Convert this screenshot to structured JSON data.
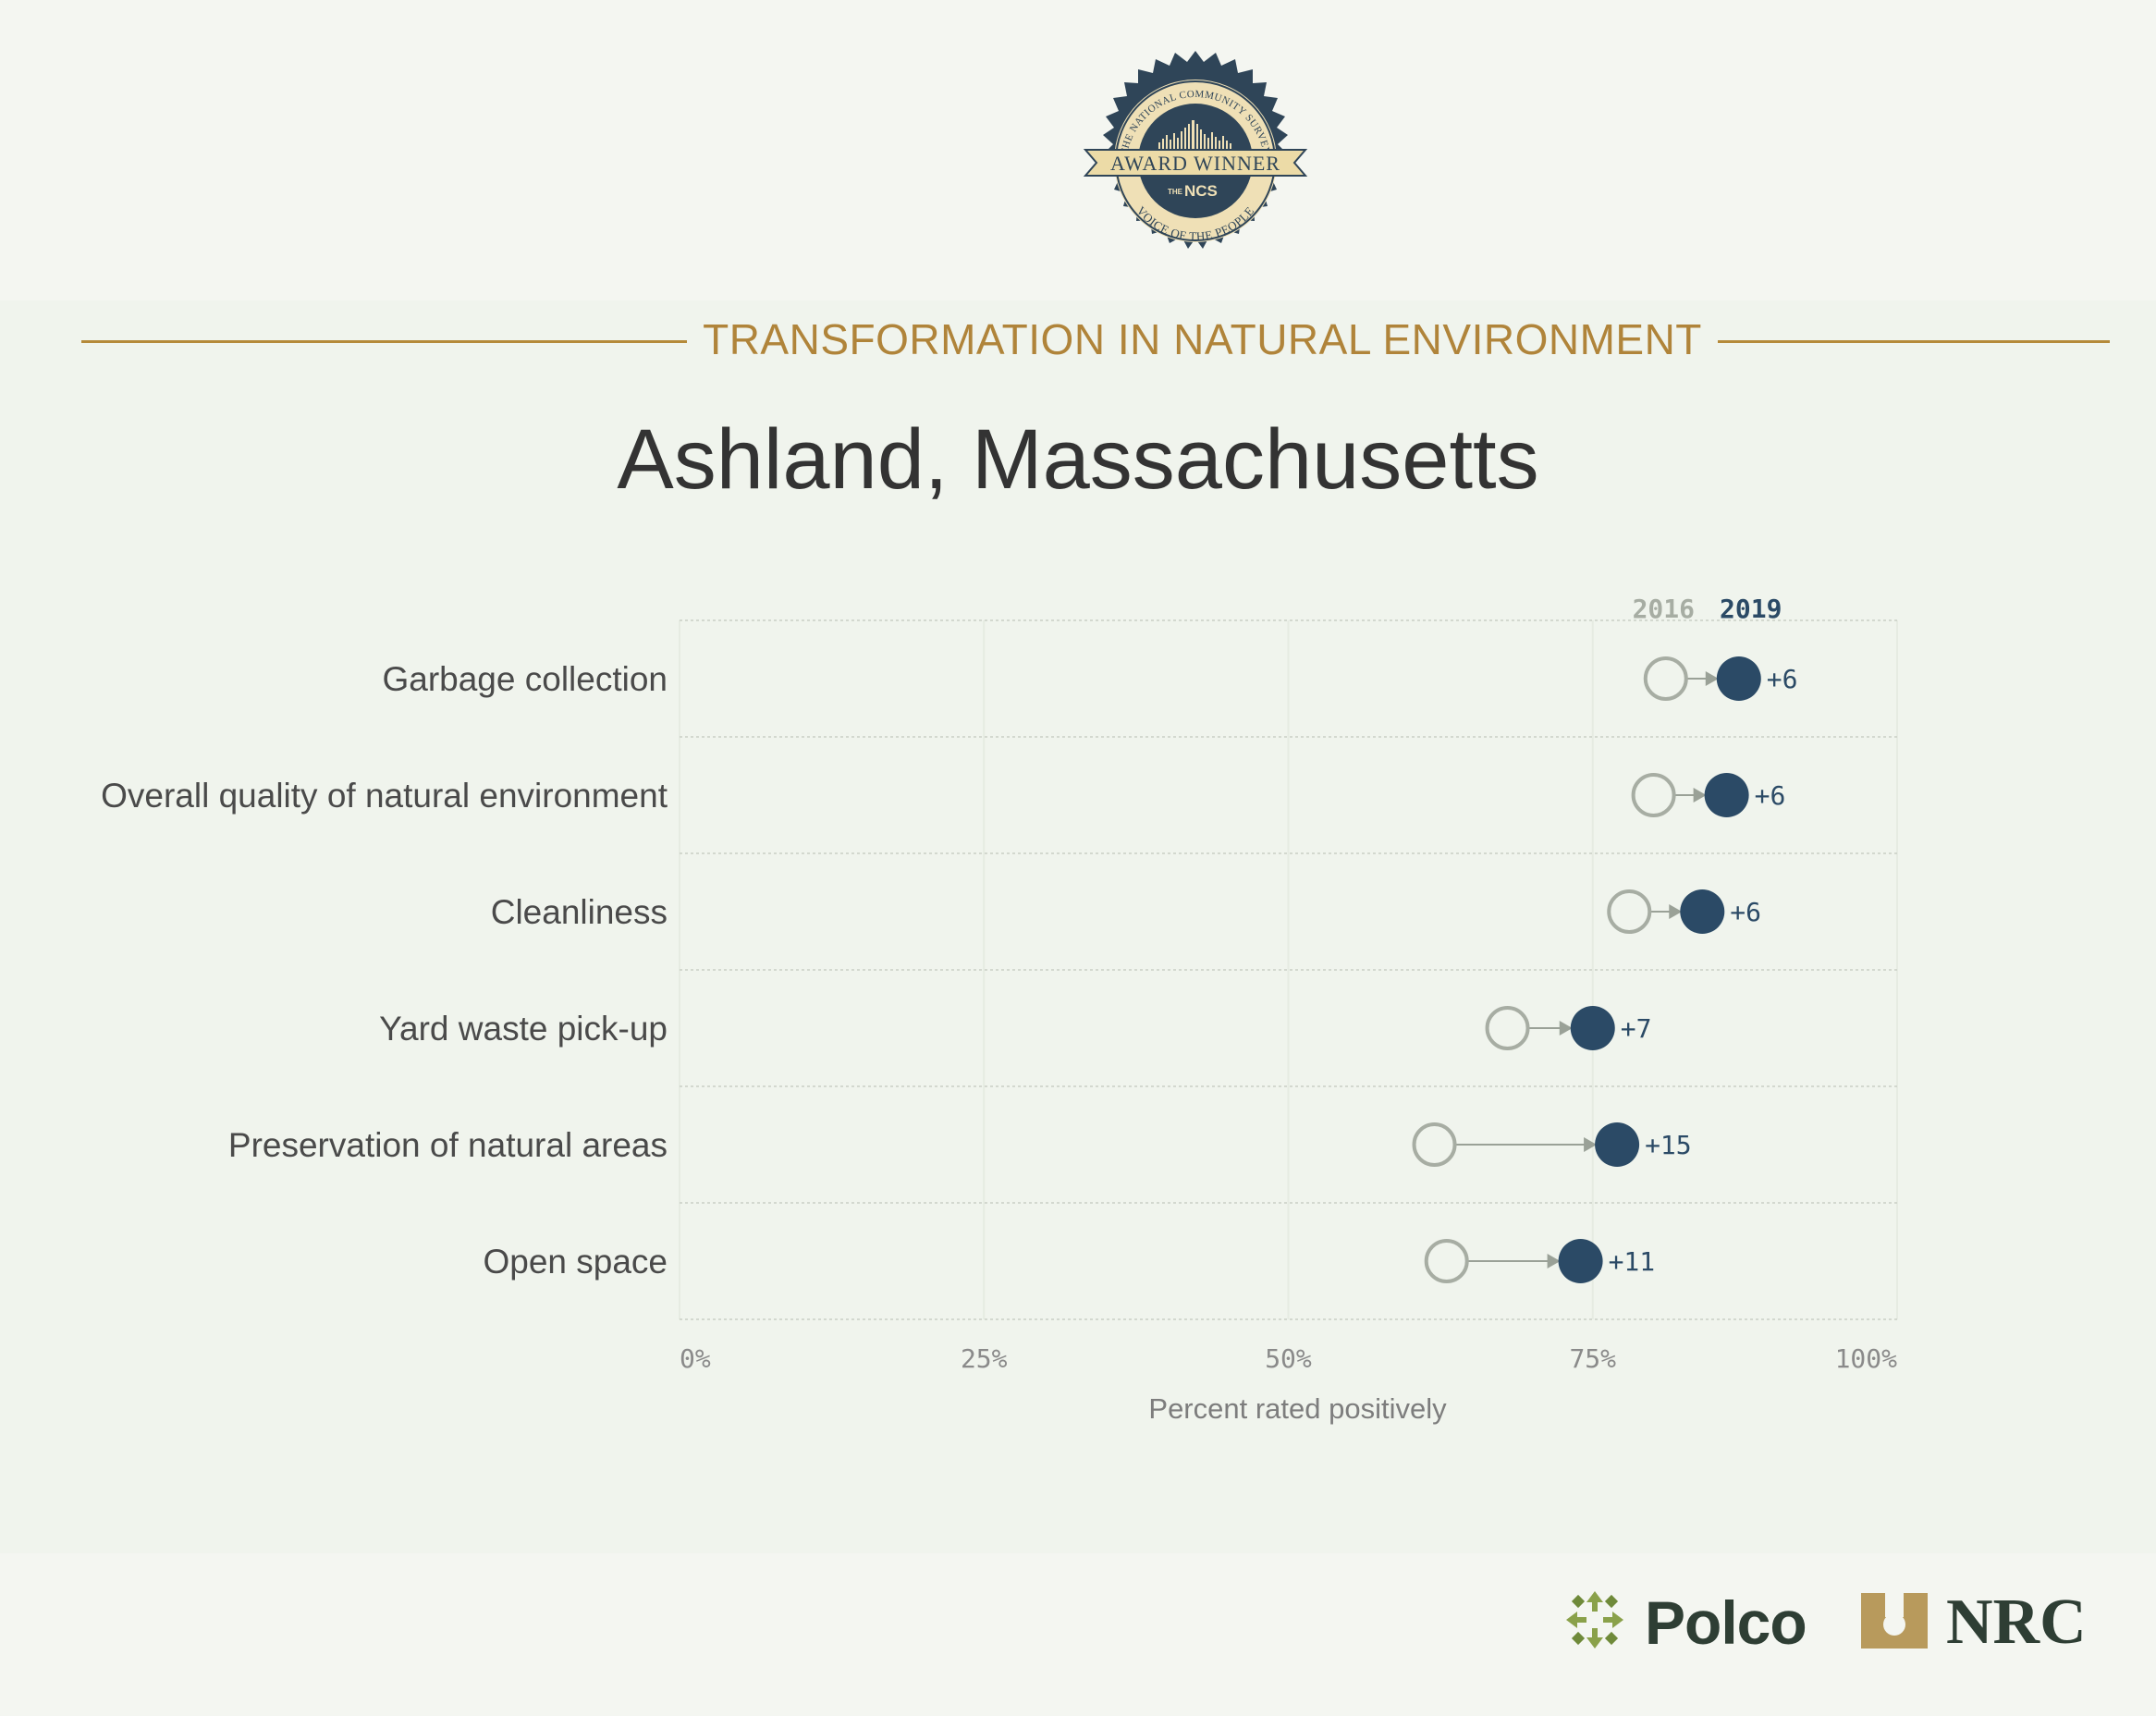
{
  "badge": {
    "ring_text_top": "THE NATIONAL COMMUNITY SURVEY",
    "banner": "AWARD WINNER",
    "ncs": "NCS",
    "ncs_prefix": "THE",
    "ring_text_bottom": "VOICE OF THE PEOPLE"
  },
  "header": {
    "section_title": "TRANSFORMATION IN NATURAL ENVIRONMENT",
    "city": "Ashland, Massachusetts"
  },
  "chart_data": {
    "type": "dumbbell",
    "legend": {
      "old": "2016",
      "new": "2019",
      "placement": "top-right"
    },
    "categories": [
      "Garbage collection",
      "Overall quality of natural environment",
      "Cleanliness",
      "Yard waste pick-up",
      "Preservation of natural areas",
      "Open space"
    ],
    "series": [
      {
        "name": "2016",
        "values": [
          81,
          80,
          78,
          68,
          62,
          63
        ]
      },
      {
        "name": "2019",
        "values": [
          87,
          86,
          84,
          75,
          77,
          74
        ]
      }
    ],
    "deltas": [
      "+6",
      "+6",
      "+6",
      "+7",
      "+15",
      "+11"
    ],
    "xticks": [
      "0%",
      "25%",
      "50%",
      "75%",
      "100%"
    ],
    "xtick_values": [
      0,
      25,
      50,
      75,
      100
    ],
    "xlim": [
      0,
      100
    ],
    "xlabel": "Percent rated positively",
    "colors": {
      "old": "#a7ada3",
      "new": "#2b4a66",
      "arrow": "#9aa197"
    }
  },
  "footer": {
    "polco": "Polco",
    "nrc": "NRC"
  }
}
